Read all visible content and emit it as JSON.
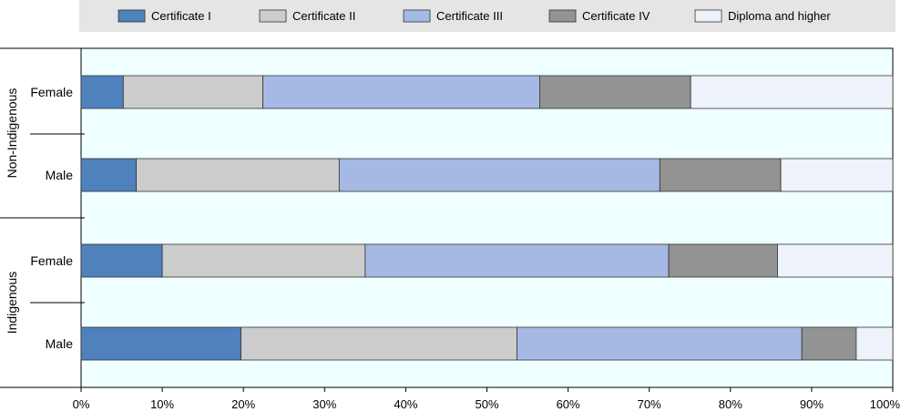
{
  "chart_data": {
    "type": "bar",
    "orientation": "horizontal",
    "stacked": true,
    "percent": true,
    "title": "",
    "xlabel": "",
    "ylabel": "",
    "xlim": [
      0,
      100
    ],
    "x_ticks": [
      "0%",
      "10%",
      "20%",
      "30%",
      "40%",
      "50%",
      "60%",
      "70%",
      "80%",
      "90%",
      "100%"
    ],
    "grid": false,
    "legend_position": "top",
    "groups": [
      "Non-Indigenous",
      "Indigenous"
    ],
    "categories": [
      "Female",
      "Male",
      "Female",
      "Male"
    ],
    "category_groups": [
      "Non-Indigenous",
      "Non-Indigenous",
      "Indigenous",
      "Indigenous"
    ],
    "series": [
      {
        "name": "Certificate I",
        "color": "#4f81bd",
        "values": [
          5.2,
          6.8,
          10.0,
          19.7
        ]
      },
      {
        "name": "Certificate II",
        "color": "#cccccc",
        "values": [
          17.2,
          25.0,
          25.0,
          34.0
        ]
      },
      {
        "name": "Certificate III",
        "color": "#a6b9e4",
        "values": [
          34.1,
          39.5,
          37.4,
          35.1
        ]
      },
      {
        "name": "Certificate IV",
        "color": "#939393",
        "values": [
          18.6,
          14.9,
          13.4,
          6.7
        ]
      },
      {
        "name": "Diploma and higher",
        "color": "#eef2fb",
        "values": [
          24.9,
          13.8,
          14.2,
          4.5
        ]
      }
    ],
    "plot_background": "#f0ffff"
  }
}
